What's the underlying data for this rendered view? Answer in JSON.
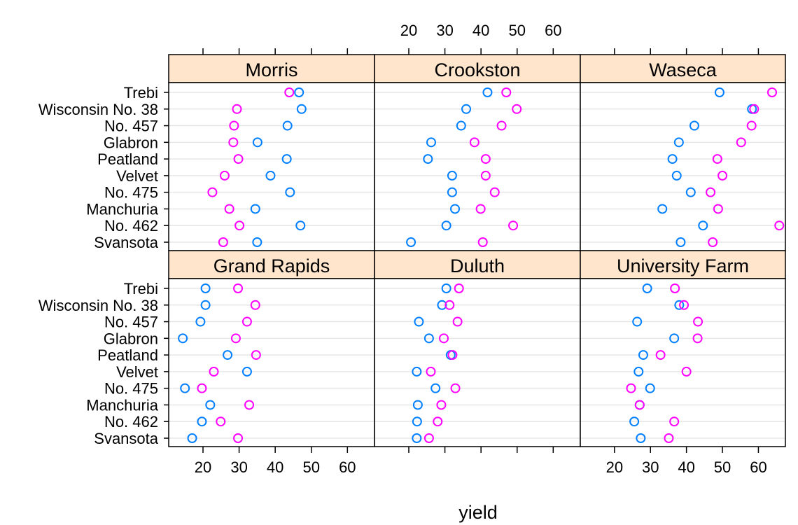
{
  "chart_data": {
    "type": "scatter",
    "subtype": "dotplot-trellis",
    "xlabel": "yield",
    "ylabel": "",
    "xlim": [
      10.5,
      67.5
    ],
    "x_ticks": [
      20,
      30,
      40,
      50,
      60
    ],
    "grid": true,
    "legend": "none",
    "varieties": [
      "Svansota",
      "No. 462",
      "Manchuria",
      "No. 475",
      "Velvet",
      "Peatland",
      "Glabron",
      "No. 457",
      "Wisconsin No. 38",
      "Trebi"
    ],
    "series_colors": {
      "blue": "#0080ff",
      "magenta": "#ff00ff"
    },
    "panels": [
      {
        "site": "Grand Rapids",
        "blue": [
          17,
          19.7,
          22,
          15,
          32.2,
          26.8,
          14.4,
          19.3,
          20.7,
          20.7
        ],
        "magenta": [
          29.7,
          24.9,
          32.8,
          19.7,
          23,
          34.7,
          29.1,
          32.2,
          34.5,
          29.7
        ]
      },
      {
        "site": "Duluth",
        "blue": [
          22.2,
          22.3,
          22.5,
          27.4,
          22.2,
          31.6,
          25.6,
          22.8,
          29.2,
          30.4
        ],
        "magenta": [
          25.6,
          28,
          29,
          32.9,
          26.1,
          32.1,
          29.7,
          33.5,
          31.3,
          33.9
        ]
      },
      {
        "site": "University Farm",
        "blue": [
          27.3,
          25.5,
          27,
          29.9,
          26.7,
          28,
          36.6,
          26.3,
          38,
          29.1
        ],
        "magenta": [
          35.1,
          36.6,
          27,
          24.6,
          40,
          32.8,
          43.1,
          43.2,
          39.3,
          36.8
        ]
      },
      {
        "site": "Morris",
        "blue": [
          35,
          47,
          34.5,
          44.1,
          38.7,
          43.2,
          35.1,
          43.4,
          47.3,
          46.6
        ],
        "magenta": [
          25.6,
          30.1,
          27.3,
          22.6,
          26,
          29.8,
          28.4,
          28.6,
          29.4,
          43.9
        ]
      },
      {
        "site": "Crookston",
        "blue": [
          20.6,
          30.4,
          32.8,
          32,
          32,
          25.3,
          26.2,
          34.5,
          35.9,
          41.8
        ],
        "magenta": [
          40.5,
          48.9,
          39.9,
          43.8,
          41.3,
          41.3,
          38.2,
          45.7,
          49.9,
          47
        ]
      },
      {
        "site": "Waseca",
        "blue": [
          38.4,
          44.6,
          33.3,
          41.2,
          37.3,
          36.1,
          37.9,
          42.2,
          58.2,
          49.2
        ],
        "magenta": [
          47.3,
          65.8,
          48.8,
          46.7,
          50,
          48.6,
          55.2,
          58.1,
          58.8,
          63.8
        ]
      }
    ]
  }
}
